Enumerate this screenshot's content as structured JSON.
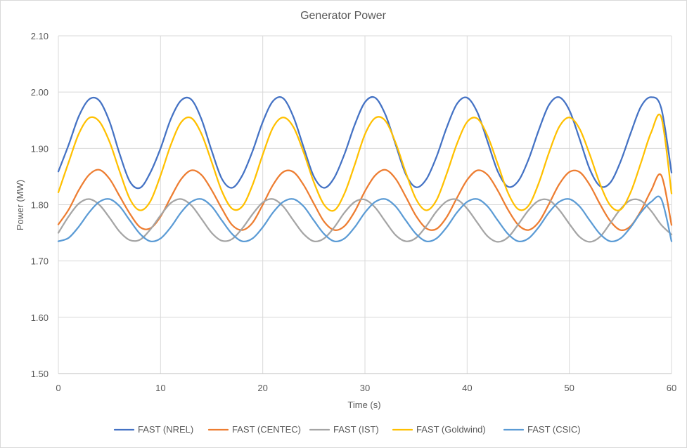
{
  "chart_data": {
    "type": "line",
    "title": "Generator Power",
    "xlabel": "Time (s)",
    "ylabel": "Power (MW)",
    "xlim": [
      0,
      60
    ],
    "ylim": [
      1.5,
      2.1
    ],
    "x_ticks": [
      "0",
      "10",
      "20",
      "30",
      "40",
      "50",
      "60"
    ],
    "y_ticks": [
      "1.50",
      "1.60",
      "1.70",
      "1.80",
      "1.90",
      "2.00",
      "2.10"
    ],
    "grid": true,
    "legend_position": "bottom",
    "x": [
      0,
      1,
      2,
      3,
      4,
      5,
      6,
      7,
      8,
      9,
      10,
      11,
      12,
      13,
      14,
      15,
      16,
      17,
      18,
      19,
      20,
      21,
      22,
      23,
      24,
      25,
      26,
      27,
      28,
      29,
      30,
      31,
      32,
      33,
      34,
      35,
      36,
      37,
      38,
      39,
      40,
      41,
      42,
      43,
      44,
      45,
      46,
      47,
      48,
      49,
      50,
      51,
      52,
      53,
      54,
      55,
      56,
      57,
      58,
      59,
      60
    ],
    "series": [
      {
        "name": "FAST (NREL)",
        "color": "#4472c4",
        "values": [
          1.859,
          1.906,
          1.957,
          1.987,
          1.985,
          1.948,
          1.89,
          1.841,
          1.83,
          1.857,
          1.9,
          1.952,
          1.985,
          1.987,
          1.952,
          1.896,
          1.846,
          1.83,
          1.852,
          1.895,
          1.947,
          1.984,
          1.989,
          1.956,
          1.902,
          1.85,
          1.83,
          1.848,
          1.89,
          1.942,
          1.982,
          1.99,
          1.96,
          1.907,
          1.854,
          1.831,
          1.845,
          1.885,
          1.937,
          1.979,
          1.99,
          1.964,
          1.912,
          1.859,
          1.832,
          1.842,
          1.88,
          1.932,
          1.977,
          1.991,
          1.968,
          1.917,
          1.863,
          1.833,
          1.839,
          1.876,
          1.927,
          1.974,
          1.991,
          1.971,
          1.857
        ]
      },
      {
        "name": "FAST (CENTEC)",
        "color": "#ed7d31",
        "values": [
          1.765,
          1.791,
          1.826,
          1.853,
          1.862,
          1.846,
          1.815,
          1.784,
          1.76,
          1.758,
          1.779,
          1.813,
          1.845,
          1.861,
          1.853,
          1.826,
          1.793,
          1.764,
          1.755,
          1.768,
          1.8,
          1.835,
          1.858,
          1.858,
          1.835,
          1.802,
          1.77,
          1.755,
          1.762,
          1.788,
          1.824,
          1.852,
          1.862,
          1.846,
          1.814,
          1.78,
          1.758,
          1.757,
          1.778,
          1.812,
          1.844,
          1.861,
          1.853,
          1.825,
          1.791,
          1.764,
          1.755,
          1.769,
          1.801,
          1.836,
          1.858,
          1.858,
          1.835,
          1.801,
          1.771,
          1.755,
          1.762,
          1.789,
          1.825,
          1.852,
          1.764
        ]
      },
      {
        "name": "FAST (IST)",
        "color": "#a5a5a5",
        "values": [
          1.75,
          1.779,
          1.802,
          1.81,
          1.8,
          1.777,
          1.752,
          1.737,
          1.738,
          1.756,
          1.781,
          1.803,
          1.81,
          1.799,
          1.775,
          1.75,
          1.736,
          1.739,
          1.758,
          1.783,
          1.804,
          1.81,
          1.797,
          1.772,
          1.748,
          1.735,
          1.74,
          1.76,
          1.786,
          1.805,
          1.809,
          1.795,
          1.77,
          1.746,
          1.735,
          1.741,
          1.762,
          1.788,
          1.806,
          1.809,
          1.793,
          1.768,
          1.744,
          1.734,
          1.742,
          1.765,
          1.79,
          1.807,
          1.808,
          1.791,
          1.766,
          1.743,
          1.734,
          1.743,
          1.767,
          1.792,
          1.808,
          1.807,
          1.789,
          1.764,
          1.747
        ]
      },
      {
        "name": "FAST (Goldwind)",
        "color": "#ffc000",
        "values": [
          1.822,
          1.875,
          1.926,
          1.954,
          1.948,
          1.912,
          1.859,
          1.81,
          1.79,
          1.806,
          1.852,
          1.906,
          1.946,
          1.954,
          1.926,
          1.876,
          1.824,
          1.793,
          1.797,
          1.835,
          1.889,
          1.937,
          1.955,
          1.938,
          1.893,
          1.84,
          1.8,
          1.79,
          1.82,
          1.871,
          1.925,
          1.954,
          1.949,
          1.91,
          1.857,
          1.81,
          1.79,
          1.808,
          1.855,
          1.908,
          1.947,
          1.953,
          1.922,
          1.872,
          1.821,
          1.792,
          1.798,
          1.838,
          1.892,
          1.938,
          1.955,
          1.935,
          1.889,
          1.837,
          1.799,
          1.791,
          1.822,
          1.874,
          1.928,
          1.955,
          1.82
        ]
      },
      {
        "name": "FAST (CSIC)",
        "color": "#5b9bd5",
        "values": [
          1.735,
          1.741,
          1.761,
          1.786,
          1.805,
          1.81,
          1.797,
          1.772,
          1.748,
          1.735,
          1.74,
          1.76,
          1.786,
          1.805,
          1.81,
          1.797,
          1.772,
          1.748,
          1.735,
          1.74,
          1.76,
          1.786,
          1.805,
          1.81,
          1.797,
          1.772,
          1.748,
          1.735,
          1.74,
          1.76,
          1.786,
          1.805,
          1.81,
          1.797,
          1.772,
          1.748,
          1.735,
          1.74,
          1.76,
          1.786,
          1.805,
          1.81,
          1.797,
          1.772,
          1.748,
          1.735,
          1.74,
          1.76,
          1.786,
          1.805,
          1.81,
          1.797,
          1.772,
          1.748,
          1.735,
          1.74,
          1.76,
          1.786,
          1.805,
          1.81,
          1.735
        ]
      }
    ]
  }
}
